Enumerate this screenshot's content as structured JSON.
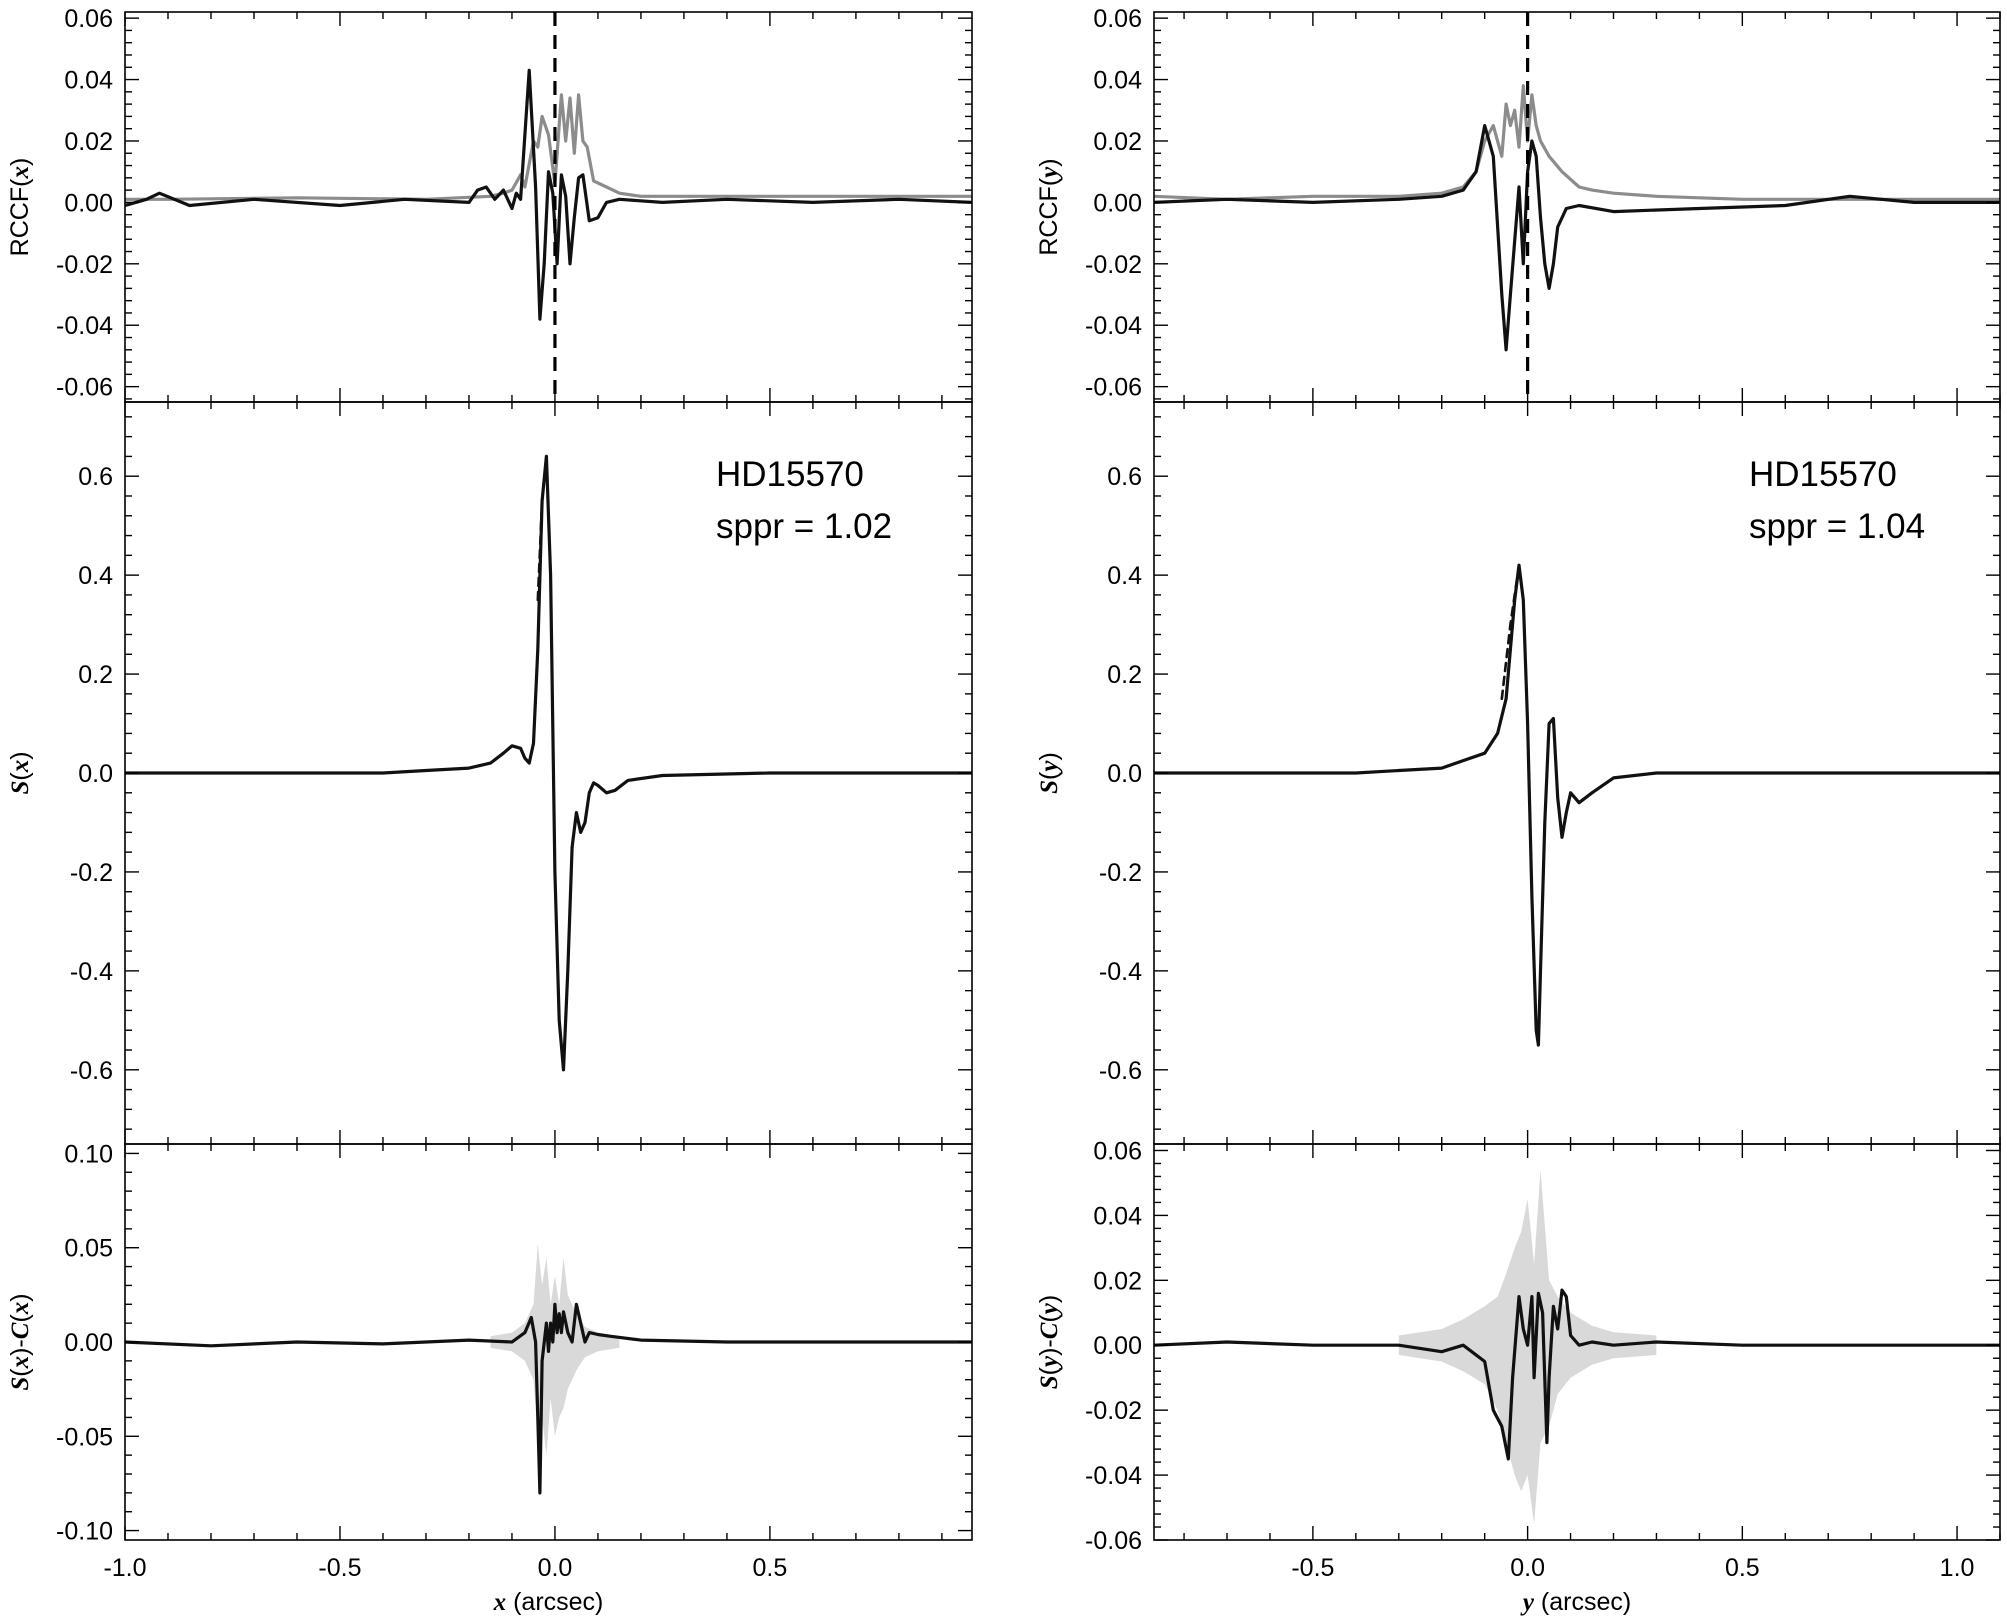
{
  "chart_data": [
    {
      "id": "left-top",
      "type": "line",
      "ylabel": "RCCF(x)",
      "xlim": [
        -1.0,
        0.97
      ],
      "ylim": [
        -0.065,
        0.062
      ],
      "yticks": [
        -0.06,
        -0.04,
        -0.02,
        0.0,
        0.02,
        0.04,
        0.06
      ],
      "ytick_labels": [
        "-0.06",
        "-0.04",
        "-0.02",
        "0.00",
        "0.02",
        "0.04",
        "0.06"
      ],
      "xticks": [
        -1.0,
        -0.5,
        0.0,
        0.5
      ],
      "vline": {
        "x": 0.0,
        "style": "dashed"
      },
      "series": [
        {
          "color": "#8c8c8c",
          "x": [
            -1.0,
            -0.9,
            -0.6,
            -0.3,
            -0.15,
            -0.12,
            -0.1,
            -0.08,
            -0.07,
            -0.05,
            -0.04,
            -0.03,
            -0.015,
            0.0,
            0.015,
            0.025,
            0.035,
            0.045,
            0.055,
            0.065,
            0.075,
            0.09,
            0.12,
            0.15,
            0.2,
            0.3,
            0.5,
            0.7,
            0.97
          ],
          "y": [
            0.001,
            0.001,
            0.0015,
            0.001,
            0.002,
            0.003,
            0.004,
            0.009,
            0.005,
            0.02,
            0.018,
            0.028,
            0.022,
            0.006,
            0.035,
            0.02,
            0.034,
            0.016,
            0.035,
            0.02,
            0.018,
            0.007,
            0.005,
            0.003,
            0.002,
            0.002,
            0.002,
            0.002,
            0.002
          ]
        },
        {
          "color": "#111111",
          "x": [
            -1.0,
            -0.95,
            -0.92,
            -0.85,
            -0.7,
            -0.5,
            -0.35,
            -0.2,
            -0.18,
            -0.16,
            -0.14,
            -0.12,
            -0.1,
            -0.09,
            -0.08,
            -0.06,
            -0.045,
            -0.035,
            -0.025,
            -0.015,
            -0.005,
            0.005,
            0.015,
            0.025,
            0.035,
            0.045,
            0.055,
            0.065,
            0.08,
            0.1,
            0.12,
            0.15,
            0.25,
            0.4,
            0.6,
            0.8,
            0.97
          ],
          "y": [
            -0.001,
            0.001,
            0.003,
            -0.001,
            0.001,
            -0.001,
            0.001,
            0.0,
            0.004,
            0.005,
            0.001,
            0.004,
            -0.002,
            0.003,
            0.001,
            0.043,
            0.005,
            -0.038,
            -0.02,
            0.01,
            0.003,
            -0.02,
            0.009,
            0.002,
            -0.02,
            -0.005,
            0.008,
            0.009,
            -0.006,
            -0.005,
            0.0,
            0.001,
            0.0,
            0.001,
            0.0,
            0.001,
            0.0
          ]
        }
      ]
    },
    {
      "id": "left-mid",
      "type": "line",
      "ylabel": "S(x)",
      "xlim": [
        -1.0,
        0.97
      ],
      "ylim": [
        -0.75,
        0.75
      ],
      "yticks": [
        -0.6,
        -0.4,
        -0.2,
        0.0,
        0.2,
        0.4,
        0.6
      ],
      "ytick_labels": [
        "-0.6",
        "-0.4",
        "-0.2",
        "0.0",
        "0.2",
        "0.4",
        "0.6"
      ],
      "xticks": [
        -1.0,
        -0.5,
        0.0,
        0.5
      ],
      "annotation": [
        "HD15570",
        "sppr = 1.02"
      ],
      "series": [
        {
          "color": "#111111",
          "style": "dashed",
          "x": [
            -0.04,
            -0.03,
            -0.02
          ],
          "y": [
            0.35,
            0.55,
            0.64
          ]
        },
        {
          "color": "#111111",
          "x": [
            -1.0,
            -0.7,
            -0.4,
            -0.3,
            -0.2,
            -0.15,
            -0.12,
            -0.1,
            -0.08,
            -0.07,
            -0.06,
            -0.05,
            -0.04,
            -0.03,
            -0.02,
            -0.01,
            0.0,
            0.01,
            0.02,
            0.03,
            0.04,
            0.05,
            0.06,
            0.07,
            0.08,
            0.09,
            0.1,
            0.12,
            0.14,
            0.17,
            0.25,
            0.5,
            0.97
          ],
          "y": [
            0.0,
            0.0,
            0.0,
            0.005,
            0.01,
            0.02,
            0.04,
            0.055,
            0.05,
            0.03,
            0.02,
            0.06,
            0.25,
            0.55,
            0.64,
            0.4,
            -0.2,
            -0.5,
            -0.6,
            -0.4,
            -0.15,
            -0.08,
            -0.12,
            -0.1,
            -0.04,
            -0.02,
            -0.025,
            -0.04,
            -0.035,
            -0.015,
            -0.005,
            0.0,
            0.0
          ]
        }
      ]
    },
    {
      "id": "left-bot",
      "type": "line",
      "ylabel": "S(x)-C(x)",
      "xlabel": "x (arcsec)",
      "xlim": [
        -1.0,
        0.97
      ],
      "ylim": [
        -0.105,
        0.105
      ],
      "yticks": [
        -0.1,
        -0.05,
        0.0,
        0.05,
        0.1
      ],
      "ytick_labels": [
        "-0.10",
        "-0.05",
        "0.00",
        "0.05",
        "0.10"
      ],
      "xticks": [
        -1.0,
        -0.5,
        0.0,
        0.5
      ],
      "xtick_labels": [
        "-1.0",
        "-0.5",
        "0.0",
        "0.5"
      ],
      "band": {
        "color": "#d9d9d9",
        "x": [
          -0.15,
          -0.1,
          -0.07,
          -0.05,
          -0.04,
          -0.03,
          -0.02,
          -0.01,
          0.0,
          0.01,
          0.02,
          0.03,
          0.04,
          0.05,
          0.07,
          0.1,
          0.15
        ],
        "upper": [
          0.003,
          0.005,
          0.01,
          0.02,
          0.052,
          0.03,
          0.045,
          0.02,
          0.035,
          0.02,
          0.045,
          0.025,
          0.02,
          0.015,
          0.008,
          0.005,
          0.003
        ],
        "lower": [
          -0.003,
          -0.005,
          -0.01,
          -0.02,
          -0.05,
          -0.04,
          -0.06,
          -0.03,
          -0.05,
          -0.04,
          -0.035,
          -0.025,
          -0.02,
          -0.015,
          -0.008,
          -0.005,
          -0.003
        ]
      },
      "series": [
        {
          "color": "#111111",
          "x": [
            -1.0,
            -0.8,
            -0.6,
            -0.4,
            -0.2,
            -0.1,
            -0.07,
            -0.055,
            -0.045,
            -0.04,
            -0.035,
            -0.03,
            -0.02,
            -0.015,
            -0.01,
            -0.005,
            0.0,
            0.005,
            0.01,
            0.015,
            0.02,
            0.03,
            0.04,
            0.05,
            0.06,
            0.07,
            0.08,
            0.1,
            0.13,
            0.2,
            0.4,
            0.6,
            0.8,
            0.97
          ],
          "y": [
            0.0,
            -0.002,
            0.0,
            -0.001,
            0.001,
            0.0,
            0.005,
            0.013,
            0.0,
            -0.04,
            -0.08,
            -0.01,
            0.01,
            -0.005,
            0.01,
            0.0,
            0.02,
            0.005,
            0.015,
            0.005,
            0.016,
            0.005,
            0.0,
            0.02,
            0.01,
            0.0,
            0.005,
            0.004,
            0.003,
            0.001,
            0.0,
            0.0,
            0.0,
            0.0
          ]
        }
      ]
    },
    {
      "id": "right-top",
      "type": "line",
      "ylabel": "RCCF(y)",
      "xlim": [
        -0.87,
        1.1
      ],
      "ylim": [
        -0.065,
        0.062
      ],
      "yticks": [
        -0.06,
        -0.04,
        -0.02,
        0.0,
        0.02,
        0.04,
        0.06
      ],
      "ytick_labels": [
        "-0.06",
        "-0.04",
        "-0.02",
        "0.00",
        "0.02",
        "0.04",
        "0.06"
      ],
      "xticks": [
        -0.5,
        0.0,
        0.5,
        1.0
      ],
      "vline": {
        "x": 0.0,
        "style": "dashed"
      },
      "series": [
        {
          "color": "#8c8c8c",
          "x": [
            -0.87,
            -0.7,
            -0.5,
            -0.3,
            -0.2,
            -0.15,
            -0.12,
            -0.1,
            -0.08,
            -0.06,
            -0.05,
            -0.04,
            -0.03,
            -0.02,
            -0.01,
            0.0,
            0.01,
            0.02,
            0.03,
            0.05,
            0.08,
            0.12,
            0.15,
            0.2,
            0.3,
            0.5,
            0.7,
            0.9,
            1.1
          ],
          "y": [
            0.002,
            0.001,
            0.002,
            0.002,
            0.003,
            0.005,
            0.01,
            0.02,
            0.025,
            0.015,
            0.032,
            0.025,
            0.03,
            0.018,
            0.038,
            0.02,
            0.035,
            0.025,
            0.02,
            0.015,
            0.01,
            0.005,
            0.004,
            0.003,
            0.002,
            0.001,
            0.001,
            0.001,
            0.001
          ]
        },
        {
          "color": "#111111",
          "x": [
            -0.87,
            -0.7,
            -0.5,
            -0.3,
            -0.2,
            -0.15,
            -0.12,
            -0.1,
            -0.08,
            -0.06,
            -0.05,
            -0.04,
            -0.02,
            -0.01,
            0.0,
            0.01,
            0.02,
            0.03,
            0.04,
            0.05,
            0.06,
            0.07,
            0.09,
            0.12,
            0.2,
            0.4,
            0.6,
            0.75,
            0.9,
            1.1
          ],
          "y": [
            0.0,
            0.001,
            0.0,
            0.001,
            0.002,
            0.004,
            0.01,
            0.025,
            0.015,
            -0.03,
            -0.048,
            -0.03,
            0.005,
            -0.02,
            0.01,
            0.02,
            0.015,
            -0.005,
            -0.02,
            -0.028,
            -0.02,
            -0.008,
            -0.002,
            -0.001,
            -0.003,
            -0.002,
            -0.001,
            0.002,
            0.0,
            0.0
          ]
        }
      ]
    },
    {
      "id": "right-mid",
      "type": "line",
      "ylabel": "S(y)",
      "xlim": [
        -0.87,
        1.1
      ],
      "ylim": [
        -0.75,
        0.75
      ],
      "yticks": [
        -0.6,
        -0.4,
        -0.2,
        0.0,
        0.2,
        0.4,
        0.6
      ],
      "ytick_labels": [
        "-0.6",
        "-0.4",
        "-0.2",
        "0.0",
        "0.2",
        "0.4",
        "0.6"
      ],
      "xticks": [
        -0.5,
        0.0,
        0.5,
        1.0
      ],
      "annotation": [
        "HD15570",
        "sppr = 1.04"
      ],
      "series": [
        {
          "color": "#111111",
          "style": "dashed",
          "x": [
            -0.06,
            -0.04,
            -0.02
          ],
          "y": [
            0.15,
            0.3,
            0.42
          ]
        },
        {
          "color": "#111111",
          "x": [
            -0.87,
            -0.6,
            -0.4,
            -0.3,
            -0.2,
            -0.15,
            -0.1,
            -0.07,
            -0.05,
            -0.03,
            -0.02,
            -0.01,
            0.0,
            0.01,
            0.02,
            0.025,
            0.03,
            0.04,
            0.05,
            0.06,
            0.07,
            0.08,
            0.09,
            0.1,
            0.12,
            0.15,
            0.2,
            0.3,
            0.6,
            1.1
          ],
          "y": [
            0.0,
            0.0,
            0.0,
            0.005,
            0.01,
            0.025,
            0.04,
            0.08,
            0.15,
            0.35,
            0.42,
            0.35,
            0.1,
            -0.25,
            -0.52,
            -0.55,
            -0.4,
            -0.1,
            0.1,
            0.11,
            -0.05,
            -0.13,
            -0.08,
            -0.04,
            -0.06,
            -0.04,
            -0.01,
            0.0,
            0.0,
            0.0
          ]
        }
      ]
    },
    {
      "id": "right-bot",
      "type": "line",
      "ylabel": "S(y)-C(y)",
      "xlabel": "y (arcsec)",
      "xlim": [
        -0.87,
        1.1
      ],
      "ylim": [
        -0.06,
        0.062
      ],
      "yticks": [
        -0.06,
        -0.04,
        -0.02,
        0.0,
        0.02,
        0.04,
        0.06
      ],
      "ytick_labels": [
        "-0.06",
        "-0.04",
        "-0.02",
        "0.00",
        "0.02",
        "0.04",
        "0.06"
      ],
      "xticks": [
        -0.5,
        0.0,
        0.5,
        1.0
      ],
      "xtick_labels": [
        "-0.5",
        "0.0",
        "0.5",
        "1.0"
      ],
      "band": {
        "color": "#d9d9d9",
        "x": [
          -0.3,
          -0.2,
          -0.15,
          -0.1,
          -0.07,
          -0.05,
          -0.03,
          -0.015,
          0.0,
          0.015,
          0.03,
          0.05,
          0.07,
          0.1,
          0.15,
          0.2,
          0.3
        ],
        "upper": [
          0.003,
          0.005,
          0.008,
          0.012,
          0.015,
          0.022,
          0.03,
          0.035,
          0.045,
          0.025,
          0.054,
          0.02,
          0.015,
          0.01,
          0.006,
          0.004,
          0.003
        ],
        "lower": [
          -0.003,
          -0.005,
          -0.008,
          -0.012,
          -0.02,
          -0.03,
          -0.04,
          -0.045,
          -0.04,
          -0.055,
          -0.03,
          -0.025,
          -0.015,
          -0.01,
          -0.006,
          -0.004,
          -0.003
        ]
      },
      "series": [
        {
          "color": "#111111",
          "x": [
            -0.87,
            -0.7,
            -0.5,
            -0.3,
            -0.2,
            -0.15,
            -0.1,
            -0.08,
            -0.06,
            -0.045,
            -0.035,
            -0.02,
            -0.01,
            0.0,
            0.01,
            0.015,
            0.025,
            0.035,
            0.045,
            0.05,
            0.06,
            0.07,
            0.08,
            0.09,
            0.1,
            0.12,
            0.15,
            0.2,
            0.3,
            0.5,
            0.7,
            0.9,
            1.1
          ],
          "y": [
            0.0,
            0.001,
            0.0,
            0.0,
            -0.002,
            0.0,
            -0.005,
            -0.02,
            -0.025,
            -0.035,
            -0.01,
            0.015,
            0.005,
            0.0,
            0.015,
            -0.01,
            0.016,
            0.01,
            -0.03,
            -0.01,
            0.012,
            0.005,
            0.017,
            0.015,
            0.003,
            0.0,
            0.001,
            0.0,
            0.001,
            0.0,
            0.0,
            0.0,
            0.0
          ]
        }
      ]
    }
  ]
}
